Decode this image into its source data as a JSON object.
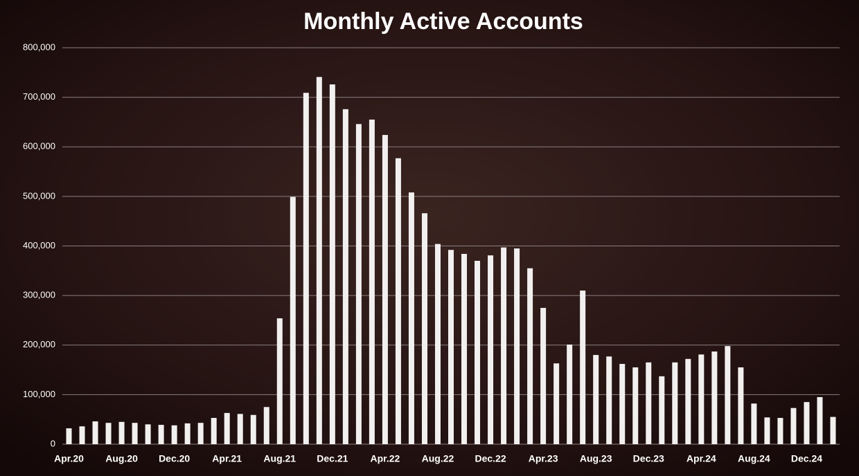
{
  "chart_data": {
    "type": "bar",
    "title": "Monthly Active Accounts",
    "categories": [
      "Apr.20",
      null,
      null,
      null,
      "Aug.20",
      null,
      null,
      null,
      "Dec.20",
      null,
      null,
      null,
      "Apr.21",
      null,
      null,
      null,
      "Aug.21",
      null,
      null,
      null,
      "Dec.21",
      null,
      null,
      null,
      "Apr.22",
      null,
      null,
      null,
      "Aug.22",
      null,
      null,
      null,
      "Dec.22",
      null,
      null,
      null,
      "Apr.23",
      null,
      null,
      null,
      "Aug.23",
      null,
      null,
      null,
      "Dec.23",
      null,
      null,
      null,
      "Apr.24",
      null,
      null,
      null,
      "Aug.24",
      null,
      null,
      null,
      "Dec.24",
      null,
      null
    ],
    "values": [
      32000,
      36000,
      46000,
      43000,
      45000,
      43000,
      40000,
      39000,
      38000,
      42000,
      43000,
      53000,
      63000,
      61000,
      59000,
      75000,
      254000,
      499000,
      709000,
      741000,
      726000,
      676000,
      646000,
      655000,
      624000,
      577000,
      508000,
      466000,
      404000,
      392000,
      384000,
      370000,
      381000,
      397000,
      395000,
      355000,
      275000,
      163000,
      201000,
      310000,
      180000,
      177000,
      162000,
      155000,
      165000,
      137000,
      165000,
      172000,
      181000,
      187000,
      198000,
      155000,
      82000,
      54000,
      53000,
      73000,
      85000,
      95000,
      55000
    ],
    "color": "#f2efef",
    "ylim": [
      0,
      800000
    ],
    "yticks": [
      0,
      {
        "value": 100000,
        "label": "100,000"
      },
      {
        "value": 200000,
        "label": "200,000"
      },
      {
        "value": 300000,
        "label": "300,000"
      },
      {
        "value": 400000,
        "label": "400,000"
      },
      {
        "value": 500000,
        "label": "500,000"
      },
      {
        "value": 600000,
        "label": "600,000"
      },
      {
        "value": 700000,
        "label": "700,000"
      },
      {
        "value": 800000,
        "label": "800,000"
      }
    ],
    "grid": true
  }
}
